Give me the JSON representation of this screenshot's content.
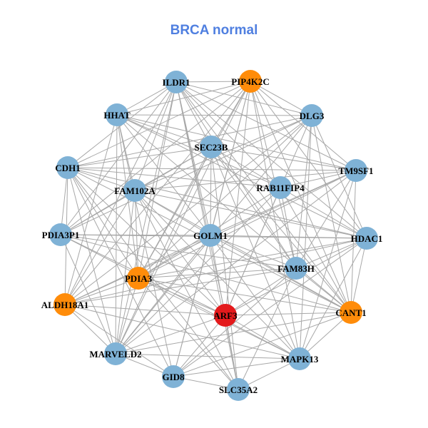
{
  "title": "BRCA normal",
  "colors": {
    "title": "#4f7fe0",
    "node_default": "#7fb2d6",
    "node_highlight": "#ff8c0a",
    "node_focus": "#e41a1c",
    "edge": "#a8a8a8"
  },
  "nodes": [
    {
      "id": "ILDR1",
      "label": "ILDR1",
      "group": "default"
    },
    {
      "id": "PIP4K2C",
      "label": "PIP4K2C",
      "group": "highlight"
    },
    {
      "id": "HHAT",
      "label": "HHAT",
      "group": "default"
    },
    {
      "id": "DLG3",
      "label": "DLG3",
      "group": "default"
    },
    {
      "id": "SEC23B",
      "label": "SEC23B",
      "group": "default"
    },
    {
      "id": "CDH1",
      "label": "CDH1",
      "group": "default"
    },
    {
      "id": "TM9SF1",
      "label": "TM9SF1",
      "group": "default"
    },
    {
      "id": "FAM102A",
      "label": "FAM102A",
      "group": "default"
    },
    {
      "id": "RAB11FIP4",
      "label": "RAB11FIP4",
      "group": "default"
    },
    {
      "id": "PDIA3P1",
      "label": "PDIA3P1",
      "group": "default"
    },
    {
      "id": "GOLM1",
      "label": "GOLM1",
      "group": "default"
    },
    {
      "id": "HDAC1",
      "label": "HDAC1",
      "group": "default"
    },
    {
      "id": "FAM83H",
      "label": "FAM83H",
      "group": "default"
    },
    {
      "id": "PDIA3",
      "label": "PDIA3",
      "group": "highlight"
    },
    {
      "id": "ALDH18A1",
      "label": "ALDH18A1",
      "group": "highlight"
    },
    {
      "id": "ARF3",
      "label": "ARF3",
      "group": "focus"
    },
    {
      "id": "CANT1",
      "label": "CANT1",
      "group": "highlight"
    },
    {
      "id": "MARVELD2",
      "label": "MARVELD2",
      "group": "default"
    },
    {
      "id": "MAPK13",
      "label": "MAPK13",
      "group": "default"
    },
    {
      "id": "GID8",
      "label": "GID8",
      "group": "default"
    },
    {
      "id": "SLC35A2",
      "label": "SLC35A2",
      "group": "default"
    }
  ]
}
